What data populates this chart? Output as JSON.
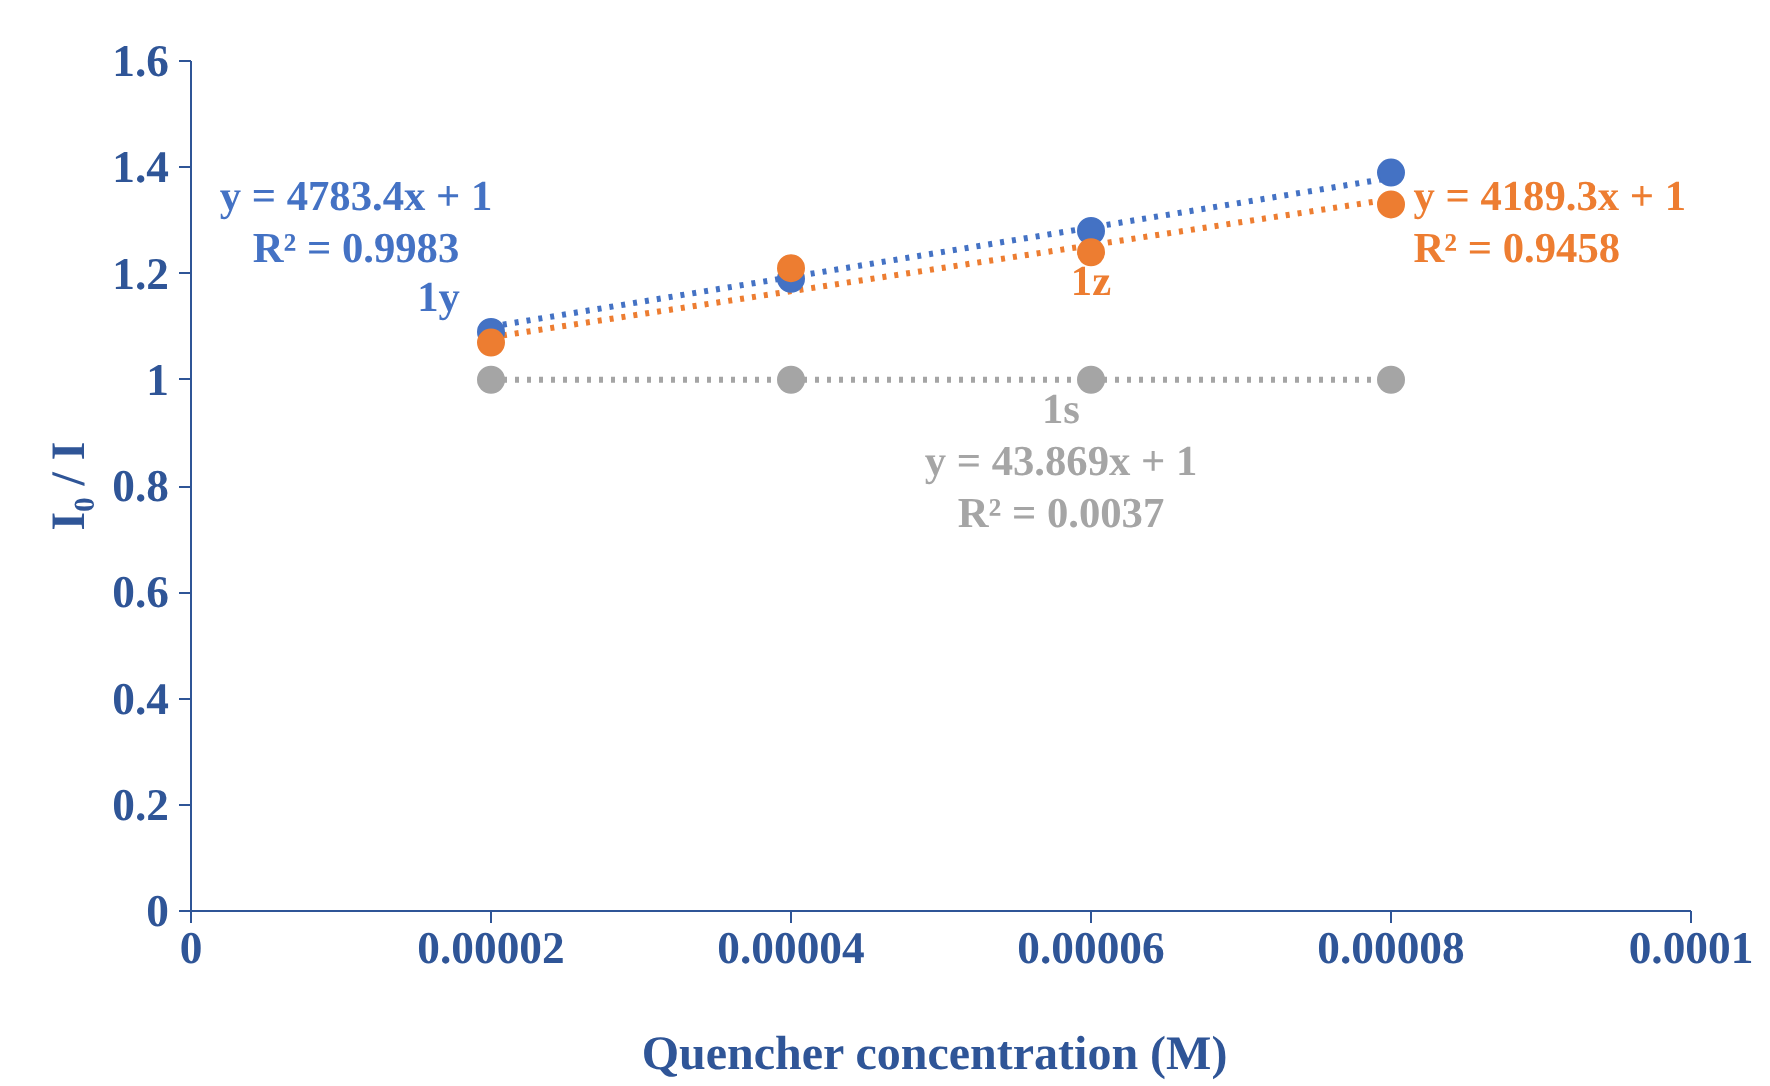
{
  "chart_data": {
    "type": "scatter",
    "xlabel": "Quencher concentration  (M)",
    "ylabel": "I₀ / I",
    "xlim": [
      0,
      0.0001
    ],
    "xticks": [
      0,
      {
        "value": 2e-05,
        "label": "0.00002"
      },
      {
        "value": 4e-05,
        "label": "0.00004"
      },
      {
        "value": 6e-05,
        "label": "0.00006"
      },
      {
        "value": 8e-05,
        "label": "0.00008"
      },
      {
        "value": 0.0001,
        "label": "0.0001"
      }
    ],
    "ylim": [
      0,
      1.6
    ],
    "yticks": [
      0,
      0.2,
      0.4,
      0.6,
      0.8,
      1,
      1.2,
      1.4,
      1.6
    ],
    "grid": false,
    "legend": false,
    "marker": "circle",
    "series": [
      {
        "name": "1y",
        "color": "#4472c4",
        "x": [
          2e-05,
          4e-05,
          6e-05,
          8e-05
        ],
        "values": [
          1.09,
          1.19,
          1.28,
          1.39
        ]
      },
      {
        "name": "1z",
        "color": "#ed7d31",
        "x": [
          2e-05,
          4e-05,
          6e-05,
          8e-05
        ],
        "values": [
          1.07,
          1.21,
          1.24,
          1.33
        ]
      },
      {
        "name": "1s",
        "color": "#a5a5a5",
        "x": [
          2e-05,
          4e-05,
          6e-05,
          8e-05
        ],
        "values": [
          1.0,
          1.0,
          1.0,
          1.0
        ]
      },
      {
        "type": "line",
        "marker": "none",
        "name": "y = 4783.4x + 1\nR² = 0.9983",
        "color": "#4472c4",
        "line_style": "dotted",
        "x": [
          2e-05,
          8e-05
        ],
        "values": [
          1.1,
          1.38
        ]
      },
      {
        "type": "line",
        "marker": "none",
        "name": "y = 4189.3x + 1\nR² = 0.9458",
        "color": "#ed7d31",
        "line_style": "dotted",
        "x": [
          2e-05,
          8e-05
        ],
        "values": [
          1.08,
          1.34
        ]
      },
      {
        "type": "line",
        "marker": "none",
        "name": "y = 43.869x + 1\nR² = 0.0037",
        "color": "#a5a5a5",
        "line_style": "dotted",
        "x": [
          2e-05,
          8e-05
        ],
        "values": [
          1.0,
          1.0
        ]
      }
    ]
  }
}
